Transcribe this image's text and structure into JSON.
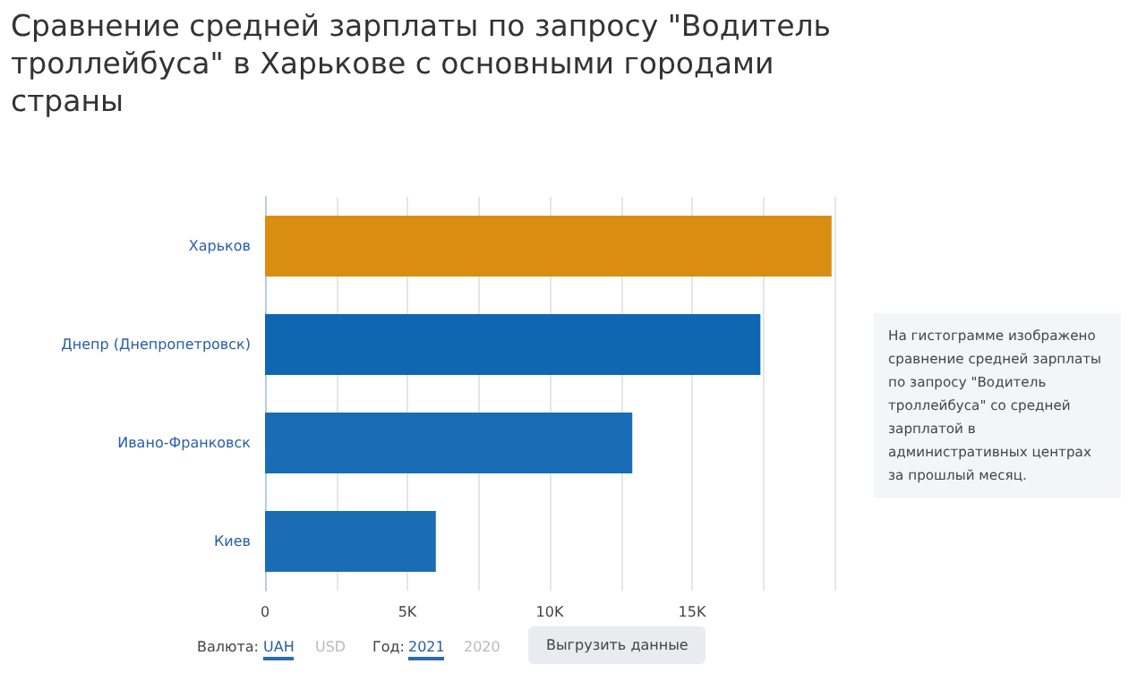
{
  "chart_data": {
    "type": "bar",
    "orientation": "horizontal",
    "title": "Сравнение средней зарплаты по запросу \"Водитель троллейбуса\" в Харькове с основными городами страны",
    "categories": [
      "Харьков",
      "Днепр (Днепропетровск)",
      "Ивано-Франковск",
      "Киев"
    ],
    "values": [
      19900,
      17400,
      12900,
      6000
    ],
    "colors": [
      "#d98e12",
      "#0f67b1",
      "#1a6db5",
      "#1a6db5"
    ],
    "xlim": [
      0,
      20000
    ],
    "xticks": [
      0,
      {
        "value": 2500,
        "label": null
      },
      {
        "value": 5000,
        "label": "5K"
      },
      {
        "value": 7500,
        "label": null
      },
      {
        "value": 10000,
        "label": "10K"
      },
      {
        "value": 12500,
        "label": null
      },
      {
        "value": 15000,
        "label": "15K"
      },
      {
        "value": 17500,
        "label": null
      },
      {
        "value": 20000,
        "label": null
      }
    ],
    "grid": "x",
    "annotations": [
      "На гистограмме изображено сравнение средней зарплаты по запросу \"Водитель троллейбуса\" со средней зарплатой в административных центрах за прошлый месяц.",
      "Валюта:",
      "UAH",
      "USD",
      "Год:",
      "2021",
      "2020",
      "Выгрузить данные"
    ]
  }
}
